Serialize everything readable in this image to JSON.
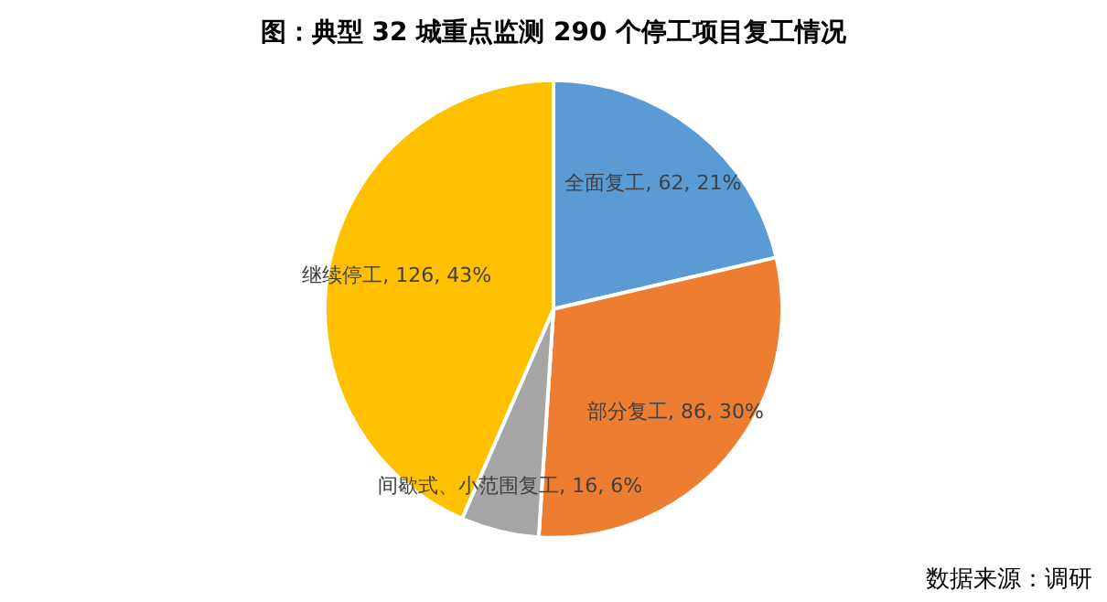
{
  "chart_data": {
    "type": "pie",
    "title": "图：典型 32 城重点监测 290 个停工项目复工情况",
    "categories": [
      "全面复工",
      "部分复工",
      "间歇式、小范围复工",
      "继续停工"
    ],
    "values": [
      62,
      86,
      16,
      126
    ],
    "value_labels": [
      "62, 21%",
      "86, 30%",
      "16, 6%",
      "126, 43%"
    ],
    "colors": [
      "#5b9bd5",
      "#ed7d31",
      "#a5a5a5",
      "#ffc000"
    ],
    "legend": false,
    "annotations": [
      "数据来源：调研"
    ]
  }
}
